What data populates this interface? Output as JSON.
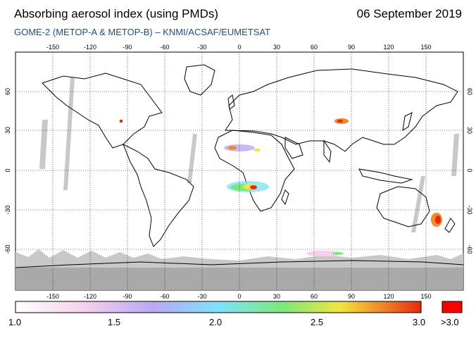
{
  "header": {
    "title": "Absorbing aerosol index (using PMDs)",
    "date": "06 September 2019",
    "subtitle": "GOME-2 (METOP-A & METOP-B)  –  KNMI/ACSAF/EUMETSAT"
  },
  "map": {
    "projection": "equirectangular",
    "lon_ticks": [
      "-150",
      "-120",
      "-90",
      "-60",
      "-30",
      "0",
      "30",
      "60",
      "90",
      "120",
      "150"
    ],
    "lat_ticks": [
      "60",
      "30",
      "0",
      "-30",
      "-60"
    ],
    "gridlines": true
  },
  "colorbar": {
    "min_label": "1.0",
    "labels": [
      "1.0",
      "1.5",
      "2.0",
      "2.5",
      "3.0"
    ],
    "over_label": ">3.0",
    "colors": [
      "#ffffff",
      "#f4d0ec",
      "#b9a8f2",
      "#80e2fa",
      "#7de87a",
      "#f0e640",
      "#f08a2a",
      "#e82a10"
    ],
    "over_color": "#ff0000"
  }
}
